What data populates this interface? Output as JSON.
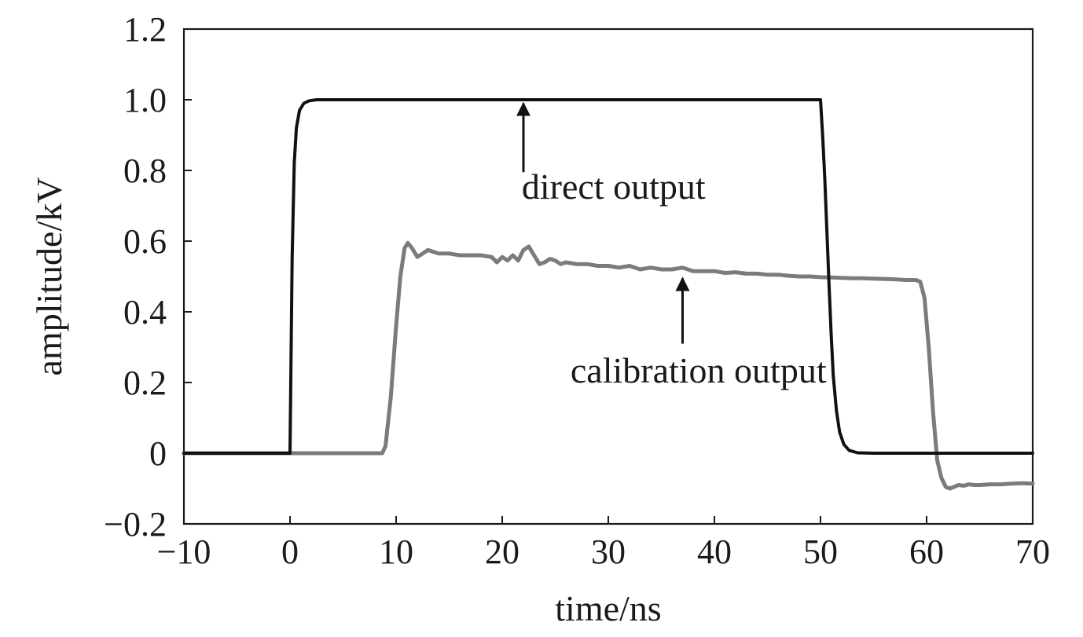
{
  "chart_data": {
    "type": "line",
    "xlabel": "time/ns",
    "ylabel": "amplitude/kV",
    "xlim": [
      -10,
      70
    ],
    "ylim": [
      -0.2,
      1.2
    ],
    "x_ticks": [
      -10,
      0,
      10,
      20,
      30,
      40,
      50,
      60,
      70
    ],
    "x_tick_labels": [
      "−10",
      "0",
      "10",
      "20",
      "30",
      "40",
      "50",
      "60",
      "70"
    ],
    "y_ticks": [
      -0.2,
      0,
      0.2,
      0.4,
      0.6,
      0.8,
      1.0,
      1.2
    ],
    "y_tick_labels": [
      "−0.2",
      "0",
      "0.2",
      "0.4",
      "0.6",
      "0.8",
      "1.0",
      "1.2"
    ],
    "grid": false,
    "series": [
      {
        "color": "#111111",
        "x": [
          -10,
          -0.05,
          0,
          0.2,
          0.4,
          0.6,
          0.9,
          1.3,
          1.8,
          2.5,
          3.5,
          50.0,
          50.2,
          50.4,
          50.6,
          50.8,
          51.0,
          51.2,
          51.5,
          51.8,
          52.2,
          52.7,
          53.5,
          55,
          70
        ],
        "y": [
          0,
          0,
          0.0,
          0.55,
          0.82,
          0.92,
          0.97,
          0.99,
          0.997,
          1.0,
          1.0,
          1.0,
          0.9,
          0.78,
          0.63,
          0.48,
          0.34,
          0.22,
          0.12,
          0.06,
          0.025,
          0.008,
          0.001,
          0,
          0
        ]
      },
      {
        "color": "#7b7b7b",
        "x": [
          -10,
          8.7,
          9.0,
          9.5,
          10.0,
          10.4,
          10.8,
          11.1,
          11.5,
          12.0,
          12.5,
          13.0,
          14.0,
          15.0,
          16.0,
          17.0,
          18.0,
          19.0,
          19.5,
          20.0,
          20.5,
          21.0,
          21.5,
          22.0,
          22.5,
          23.0,
          23.5,
          24.0,
          24.5,
          25.0,
          25.5,
          26.0,
          27.0,
          28.0,
          29.0,
          30.0,
          31.0,
          32.0,
          33.0,
          34.0,
          35.0,
          36.0,
          37.0,
          38.0,
          39.0,
          40.0,
          41.0,
          42.0,
          43.0,
          44.0,
          45.0,
          46.0,
          47.0,
          48.0,
          49.0,
          50.0,
          51.0,
          52.0,
          53.0,
          54.0,
          55.0,
          56.0,
          57.0,
          58.0,
          59.0,
          59.4,
          59.8,
          60.2,
          60.6,
          61.0,
          61.4,
          61.8,
          62.2,
          62.6,
          63.0,
          63.5,
          64.0,
          64.5,
          65.0,
          66.0,
          67.0,
          68.0,
          69.0,
          70.0
        ],
        "y": [
          0,
          0,
          0.02,
          0.16,
          0.36,
          0.5,
          0.58,
          0.595,
          0.58,
          0.555,
          0.565,
          0.575,
          0.565,
          0.565,
          0.56,
          0.56,
          0.56,
          0.555,
          0.54,
          0.555,
          0.545,
          0.56,
          0.545,
          0.575,
          0.585,
          0.56,
          0.535,
          0.54,
          0.55,
          0.545,
          0.535,
          0.54,
          0.535,
          0.535,
          0.53,
          0.53,
          0.525,
          0.53,
          0.52,
          0.525,
          0.52,
          0.52,
          0.525,
          0.515,
          0.515,
          0.515,
          0.51,
          0.512,
          0.508,
          0.508,
          0.505,
          0.505,
          0.502,
          0.5,
          0.5,
          0.498,
          0.497,
          0.496,
          0.495,
          0.495,
          0.494,
          0.493,
          0.492,
          0.49,
          0.49,
          0.485,
          0.44,
          0.3,
          0.12,
          -0.02,
          -0.07,
          -0.095,
          -0.1,
          -0.095,
          -0.09,
          -0.092,
          -0.088,
          -0.09,
          -0.09,
          -0.088,
          -0.088,
          -0.086,
          -0.085,
          -0.086
        ]
      }
    ],
    "annotations": [
      {
        "text": "direct output",
        "x": 30.5,
        "y": 0.72,
        "arrow_from": [
          22,
          0.795
        ],
        "arrow_to": [
          22,
          0.99
        ]
      },
      {
        "text": "calibration output",
        "x": 38.5,
        "y": 0.2,
        "arrow_from": [
          37,
          0.31
        ],
        "arrow_to": [
          37,
          0.495
        ]
      }
    ]
  }
}
